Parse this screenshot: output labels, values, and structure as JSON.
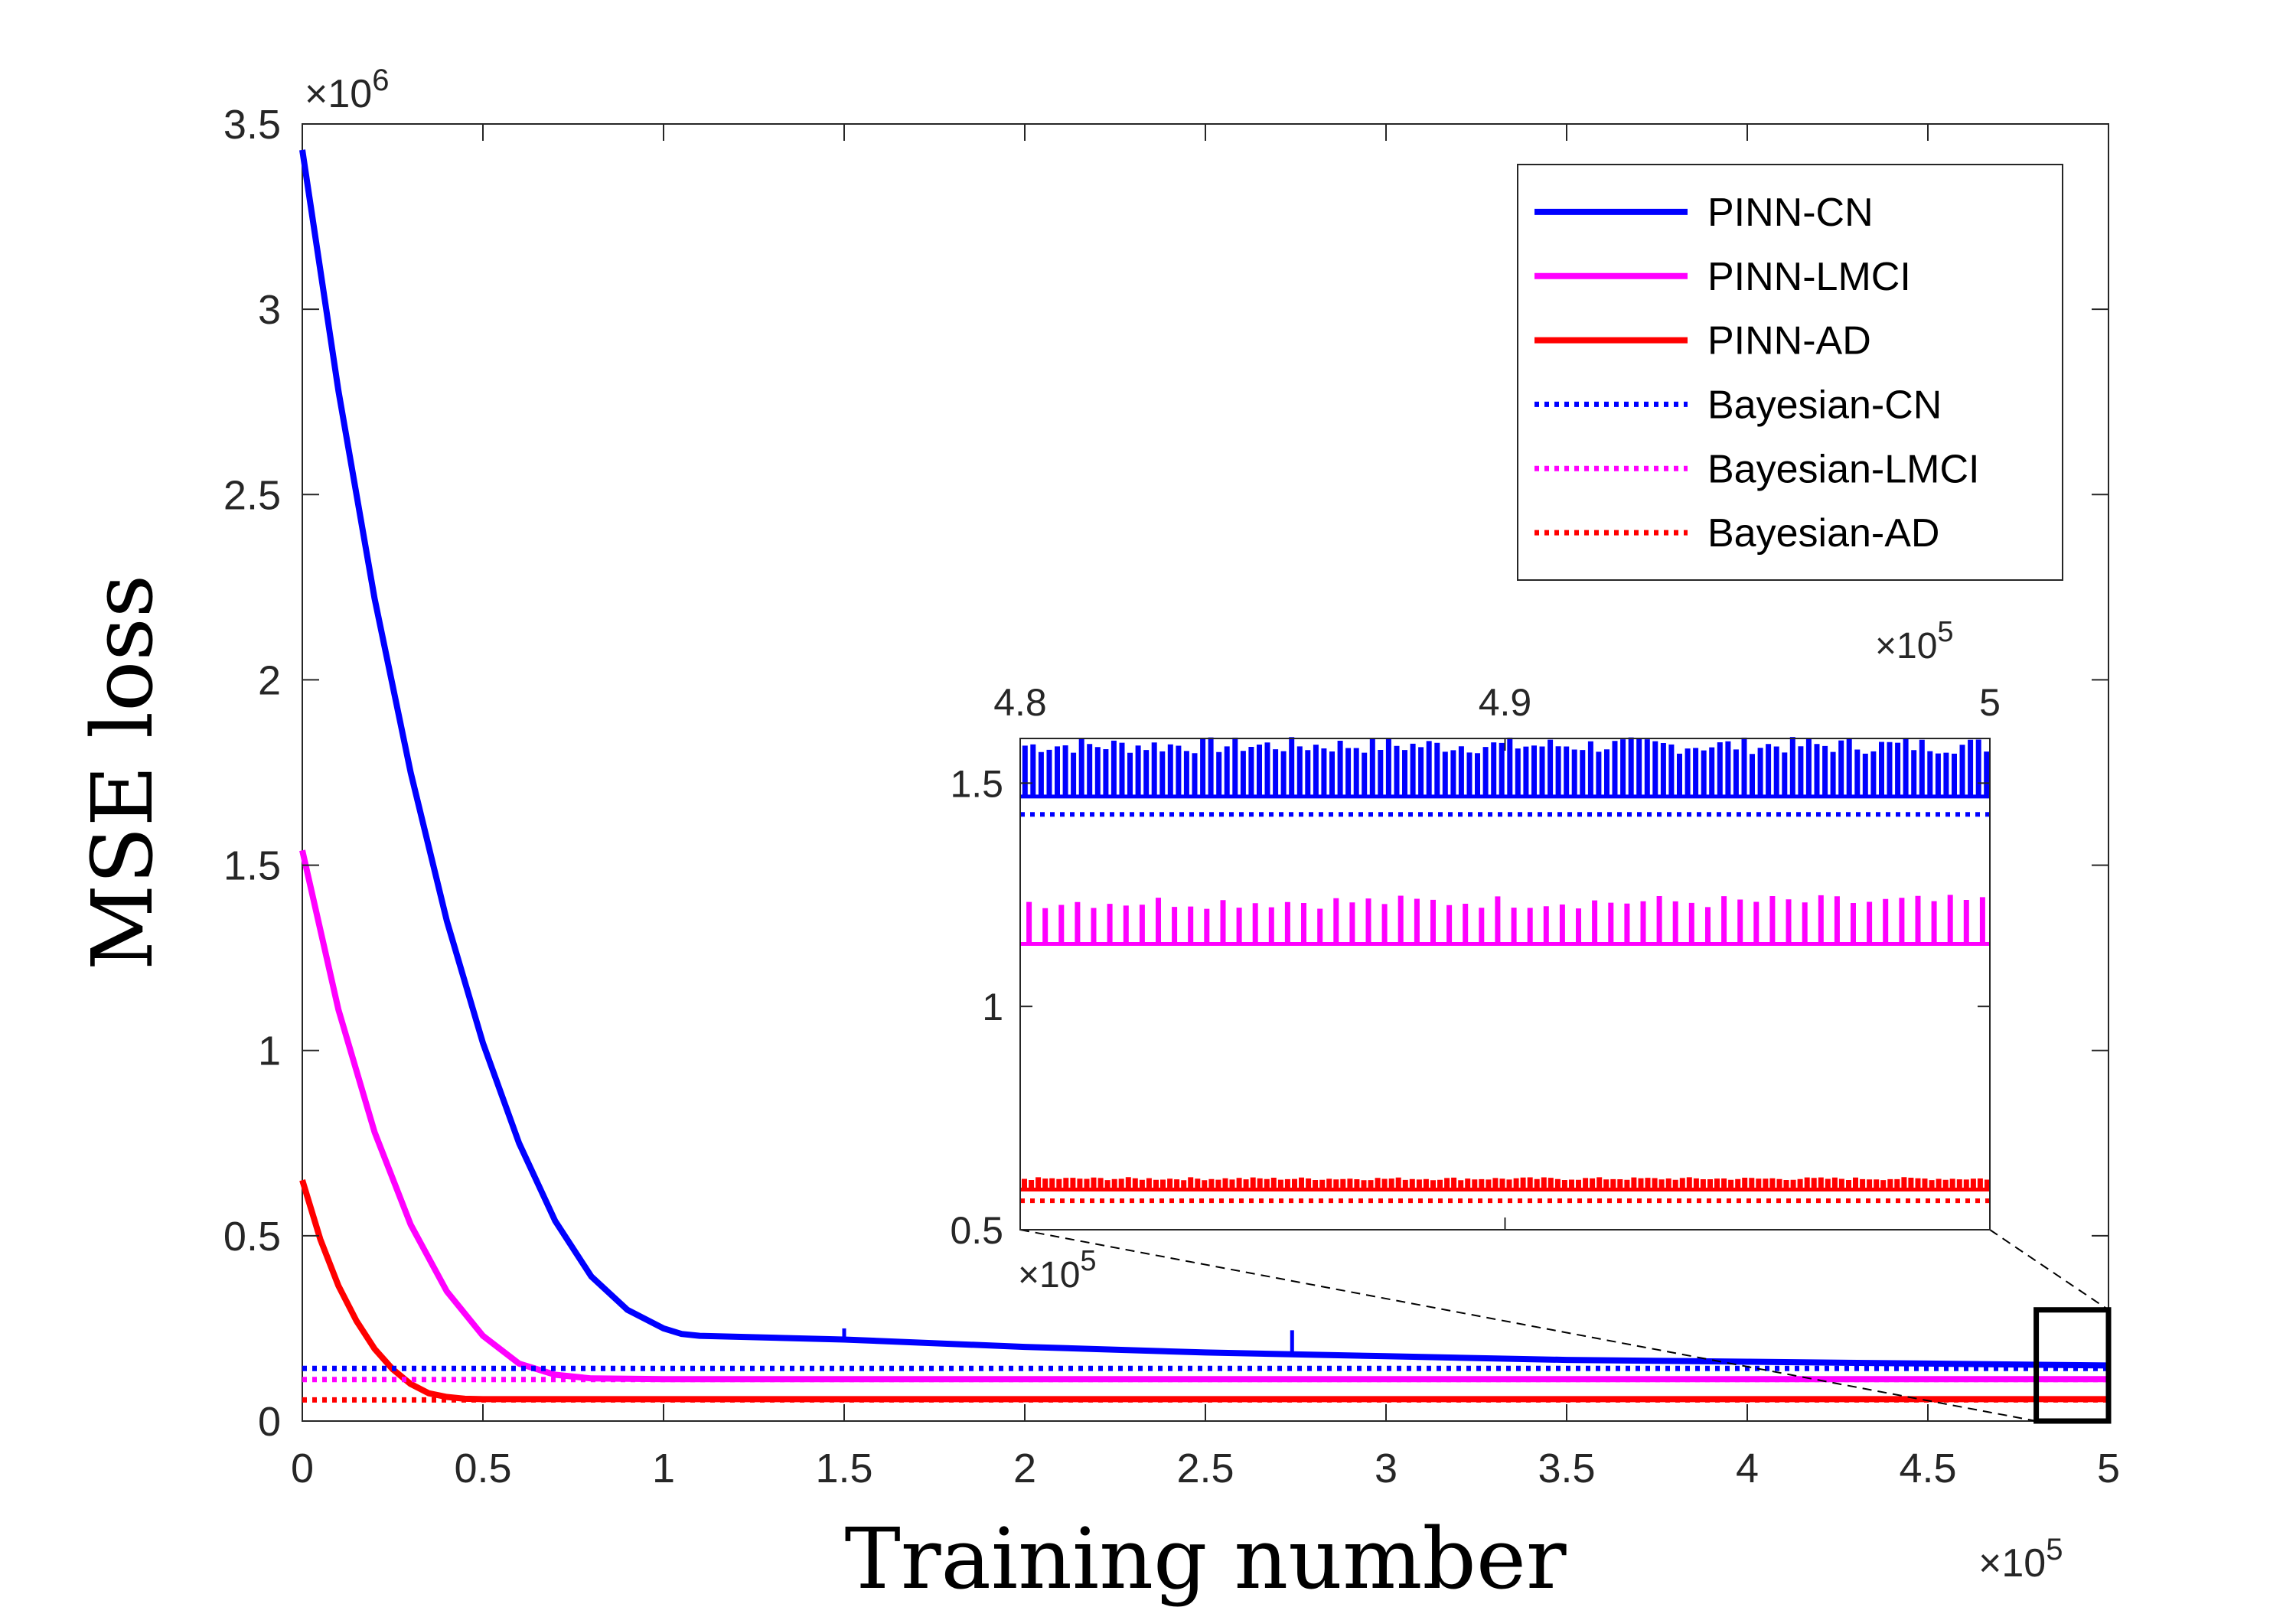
{
  "chart_data": {
    "type": "line",
    "xlabel": "Training number",
    "ylabel": "MSE loss",
    "x_exponent": "×10^5",
    "y_exponent": "×10^6",
    "xlim": [
      0,
      5
    ],
    "ylim": [
      0,
      3.5
    ],
    "xticks": [
      "0",
      "0.5",
      "1",
      "1.5",
      "2",
      "2.5",
      "3",
      "3.5",
      "4",
      "4.5",
      "5"
    ],
    "yticks": [
      "0",
      "0.5",
      "1",
      "1.5",
      "2",
      "2.5",
      "3",
      "3.5"
    ],
    "legend_position": "top-right",
    "grid": false,
    "series": [
      {
        "name": "PINN-CN",
        "color": "#0000FF",
        "style": "solid",
        "x": [
          0,
          0.1,
          0.2,
          0.3,
          0.4,
          0.5,
          0.6,
          0.7,
          0.8,
          0.9,
          1.0,
          1.05,
          1.1,
          1.5,
          2.0,
          2.5,
          3.0,
          3.5,
          4.0,
          4.5,
          5.0
        ],
        "y": [
          3.43,
          2.78,
          2.22,
          1.75,
          1.35,
          1.02,
          0.75,
          0.54,
          0.39,
          0.3,
          0.25,
          0.235,
          0.23,
          0.22,
          0.2,
          0.185,
          0.175,
          0.165,
          0.16,
          0.155,
          0.15
        ],
        "spikes": [
          [
            1.5,
            0.25
          ],
          [
            2.74,
            0.245
          ]
        ]
      },
      {
        "name": "PINN-LMCI",
        "color": "#FF00FF",
        "style": "solid",
        "x": [
          0,
          0.1,
          0.2,
          0.3,
          0.4,
          0.5,
          0.6,
          0.7,
          0.8,
          1.0,
          2.0,
          3.0,
          4.0,
          5.0
        ],
        "y": [
          1.54,
          1.11,
          0.78,
          0.53,
          0.35,
          0.23,
          0.155,
          0.125,
          0.115,
          0.113,
          0.113,
          0.113,
          0.113,
          0.113
        ]
      },
      {
        "name": "PINN-AD",
        "color": "#FF0000",
        "style": "solid",
        "x": [
          0,
          0.05,
          0.1,
          0.15,
          0.2,
          0.25,
          0.3,
          0.35,
          0.4,
          0.45,
          0.5,
          1.0,
          2.0,
          3.0,
          4.0,
          5.0
        ],
        "y": [
          0.65,
          0.49,
          0.365,
          0.27,
          0.195,
          0.14,
          0.1,
          0.075,
          0.065,
          0.06,
          0.059,
          0.059,
          0.059,
          0.059,
          0.059,
          0.059
        ]
      },
      {
        "name": "Bayesian-CN",
        "color": "#0000FF",
        "style": "dotted",
        "x": [
          0,
          5
        ],
        "y": [
          0.142,
          0.142
        ]
      },
      {
        "name": "Bayesian-LMCI",
        "color": "#FF00FF",
        "style": "dotted",
        "x": [
          0,
          5
        ],
        "y": [
          0.112,
          0.112
        ]
      },
      {
        "name": "Bayesian-AD",
        "color": "#FF0000",
        "style": "dotted",
        "x": [
          0,
          5
        ],
        "y": [
          0.057,
          0.057
        ]
      }
    ],
    "inset": {
      "xlim": [
        4.8,
        5.0
      ],
      "ylim": [
        0.5,
        1.6
      ],
      "xticks": [
        "4.8",
        "4.9",
        "5"
      ],
      "yticks": [
        "0.5",
        "1",
        "1.5"
      ],
      "x_exponent_top": "×10^5",
      "x_exponent_bottom": "×10^5",
      "zoom_region": {
        "x": [
          4.8,
          5.0
        ],
        "y": [
          0,
          0.3
        ]
      },
      "series": [
        {
          "name": "PINN-CN",
          "color": "#0000FF",
          "base": 1.47,
          "peak": 1.58,
          "count": 120
        },
        {
          "name": "PINN-LMCI",
          "color": "#FF00FF",
          "base": 1.14,
          "peak": 1.23,
          "count": 60
        },
        {
          "name": "PINN-AD",
          "color": "#FF0000",
          "base": 0.59,
          "peak": 0.61,
          "count": 140
        },
        {
          "name": "Bayesian-CN",
          "color": "#0000FF",
          "level": 1.43
        },
        {
          "name": "Bayesian-AD",
          "color": "#FF0000",
          "level": 0.565
        }
      ]
    }
  }
}
